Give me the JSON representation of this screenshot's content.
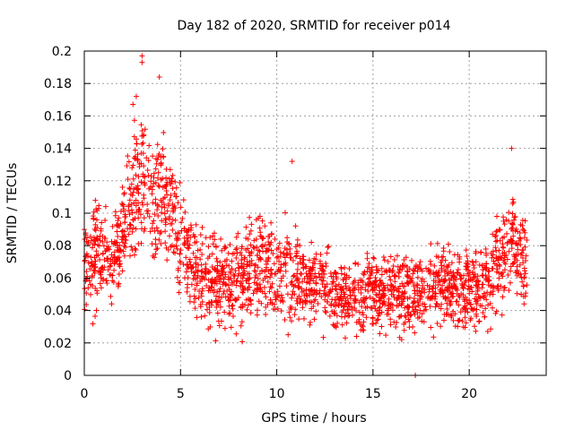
{
  "chart_data": {
    "type": "scatter",
    "title": "Day 182 of 2020, SRMTID for receiver p014",
    "xlabel": "GPS time / hours",
    "ylabel": "SRMTID / TECUs",
    "xlim": [
      0,
      24
    ],
    "ylim": [
      0,
      0.2
    ],
    "x_ticks": [
      0,
      5,
      10,
      15,
      20
    ],
    "x_tick_labels": [
      "0",
      "5",
      "10",
      "15",
      "20"
    ],
    "y_ticks": [
      0,
      0.02,
      0.04,
      0.06,
      0.08,
      0.1,
      0.12,
      0.14,
      0.16,
      0.18,
      0.2
    ],
    "y_tick_labels": [
      "0",
      "0.02",
      "0.04",
      "0.06",
      "0.08",
      "0.1",
      "0.12",
      "0.14",
      "0.16",
      "0.18",
      "0.2"
    ],
    "grid": true,
    "marker": "+",
    "color": "#ff0000",
    "sample_count": 2200,
    "x_data_range": [
      0,
      23
    ],
    "envelope_hours": [
      0,
      0.5,
      1,
      1.5,
      2,
      2.5,
      3,
      3.5,
      4,
      4.5,
      5,
      6,
      7,
      8,
      9,
      10,
      11,
      12,
      13,
      14,
      15,
      16,
      17,
      18,
      19,
      20,
      21,
      21.5,
      22,
      22.5,
      23
    ],
    "envelope_center": [
      0.065,
      0.07,
      0.075,
      0.07,
      0.09,
      0.11,
      0.12,
      0.115,
      0.11,
      0.1,
      0.085,
      0.06,
      0.055,
      0.06,
      0.07,
      0.065,
      0.06,
      0.058,
      0.05,
      0.048,
      0.05,
      0.052,
      0.05,
      0.052,
      0.055,
      0.052,
      0.058,
      0.07,
      0.08,
      0.075,
      0.068
    ],
    "envelope_spread": [
      0.02,
      0.03,
      0.025,
      0.025,
      0.03,
      0.035,
      0.04,
      0.035,
      0.035,
      0.03,
      0.03,
      0.025,
      0.025,
      0.025,
      0.03,
      0.025,
      0.025,
      0.02,
      0.018,
      0.018,
      0.02,
      0.02,
      0.02,
      0.02,
      0.022,
      0.02,
      0.025,
      0.03,
      0.032,
      0.025,
      0.02
    ],
    "notable_points": [
      {
        "x": 3.0,
        "y": 0.197
      },
      {
        "x": 3.0,
        "y": 0.193
      },
      {
        "x": 3.9,
        "y": 0.184
      },
      {
        "x": 2.7,
        "y": 0.172
      },
      {
        "x": 0.0,
        "y": 0.09
      },
      {
        "x": 10.8,
        "y": 0.132
      },
      {
        "x": 17.2,
        "y": 0.0
      },
      {
        "x": 22.2,
        "y": 0.14
      }
    ]
  }
}
